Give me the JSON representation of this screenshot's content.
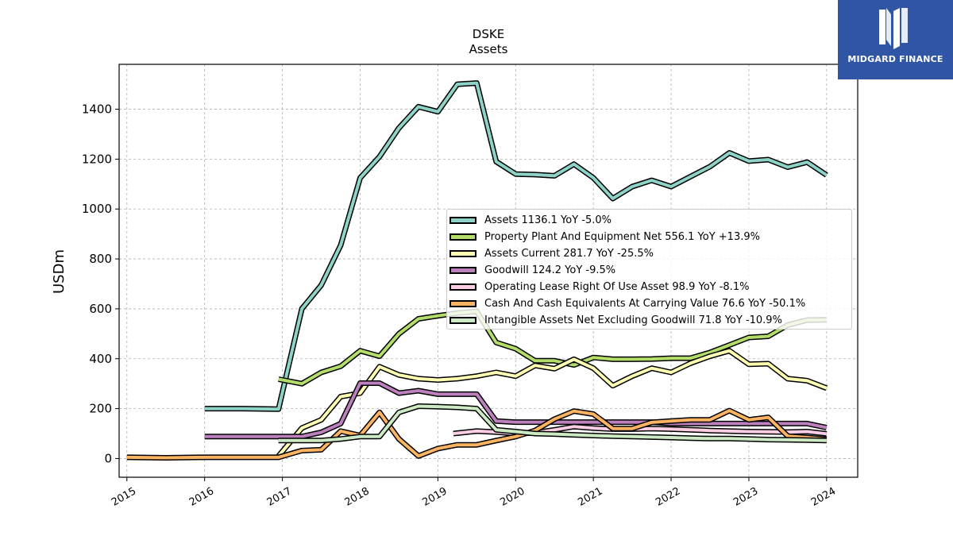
{
  "brand": {
    "name": "MIDGARD FINANCE",
    "color": "#2f55a4"
  },
  "chart_data": {
    "type": "line",
    "title": "DSKE",
    "subtitle": "Assets",
    "xlabel": "",
    "ylabel": "USDm",
    "xlim": [
      2014.9,
      2024.4
    ],
    "ylim": [
      -75,
      1580
    ],
    "xticks": [
      "2015",
      "2016",
      "2017",
      "2018",
      "2019",
      "2020",
      "2021",
      "2022",
      "2023",
      "2024"
    ],
    "yticks": [
      0,
      200,
      400,
      600,
      800,
      1000,
      1200,
      1400
    ],
    "grid": true,
    "legend_position": "center-right",
    "series": [
      {
        "name": "Assets",
        "legend": "Assets  1136.1 YoY -5.0%",
        "color": "#8dd3c7",
        "points": [
          [
            2016.0,
            200
          ],
          [
            2016.5,
            200
          ],
          [
            2016.95,
            198
          ],
          [
            2017.25,
            600
          ],
          [
            2017.5,
            695
          ],
          [
            2017.75,
            855
          ],
          [
            2018.0,
            1125
          ],
          [
            2018.25,
            1210
          ],
          [
            2018.5,
            1325
          ],
          [
            2018.75,
            1410
          ],
          [
            2019.0,
            1390
          ],
          [
            2019.25,
            1500
          ],
          [
            2019.5,
            1505
          ],
          [
            2019.75,
            1190
          ],
          [
            2020.0,
            1140
          ],
          [
            2020.25,
            1138
          ],
          [
            2020.5,
            1133
          ],
          [
            2020.75,
            1180
          ],
          [
            2021.0,
            1125
          ],
          [
            2021.25,
            1042
          ],
          [
            2021.5,
            1090
          ],
          [
            2021.75,
            1115
          ],
          [
            2022.0,
            1090
          ],
          [
            2022.25,
            1130
          ],
          [
            2022.5,
            1170
          ],
          [
            2022.75,
            1225
          ],
          [
            2023.0,
            1192
          ],
          [
            2023.25,
            1198
          ],
          [
            2023.5,
            1168
          ],
          [
            2023.75,
            1188
          ],
          [
            2024.0,
            1136
          ]
        ]
      },
      {
        "name": "Property Plant And Equipment Net",
        "legend": "Property Plant And Equipment Net  556.1 YoY +13.9%",
        "color": "#b3de69",
        "points": [
          [
            2016.95,
            318
          ],
          [
            2017.25,
            300
          ],
          [
            2017.5,
            345
          ],
          [
            2017.75,
            370
          ],
          [
            2018.0,
            432
          ],
          [
            2018.25,
            410
          ],
          [
            2018.5,
            500
          ],
          [
            2018.75,
            560
          ],
          [
            2019.0,
            572
          ],
          [
            2019.25,
            583
          ],
          [
            2019.5,
            590
          ],
          [
            2019.75,
            465
          ],
          [
            2020.0,
            440
          ],
          [
            2020.25,
            392
          ],
          [
            2020.5,
            392
          ],
          [
            2020.75,
            375
          ],
          [
            2021.0,
            405
          ],
          [
            2021.25,
            398
          ],
          [
            2021.5,
            398
          ],
          [
            2021.75,
            399
          ],
          [
            2022.0,
            402
          ],
          [
            2022.25,
            402
          ],
          [
            2022.5,
            425
          ],
          [
            2022.75,
            455
          ],
          [
            2023.0,
            485
          ],
          [
            2023.25,
            490
          ],
          [
            2023.5,
            535
          ],
          [
            2023.75,
            555
          ],
          [
            2024.0,
            556
          ]
        ]
      },
      {
        "name": "Assets Current",
        "legend": "Assets Current  281.7 YoY -25.5%",
        "color": "#ffffb3",
        "points": [
          [
            2016.95,
            10
          ],
          [
            2017.25,
            122
          ],
          [
            2017.5,
            155
          ],
          [
            2017.75,
            248
          ],
          [
            2018.0,
            262
          ],
          [
            2018.25,
            368
          ],
          [
            2018.5,
            335
          ],
          [
            2018.75,
            320
          ],
          [
            2019.0,
            315
          ],
          [
            2019.25,
            320
          ],
          [
            2019.5,
            330
          ],
          [
            2019.75,
            345
          ],
          [
            2020.0,
            330
          ],
          [
            2020.25,
            373
          ],
          [
            2020.5,
            360
          ],
          [
            2020.75,
            398
          ],
          [
            2021.0,
            362
          ],
          [
            2021.25,
            292
          ],
          [
            2021.5,
            330
          ],
          [
            2021.75,
            362
          ],
          [
            2022.0,
            345
          ],
          [
            2022.25,
            382
          ],
          [
            2022.5,
            410
          ],
          [
            2022.75,
            432
          ],
          [
            2023.0,
            378
          ],
          [
            2023.25,
            380
          ],
          [
            2023.5,
            320
          ],
          [
            2023.75,
            312
          ],
          [
            2024.0,
            282
          ]
        ]
      },
      {
        "name": "Goodwill",
        "legend": "Goodwill  124.2 YoY -9.5%",
        "color": "#bc80bd",
        "points": [
          [
            2016.0,
            88
          ],
          [
            2016.5,
            88
          ],
          [
            2016.95,
            88
          ],
          [
            2017.25,
            88
          ],
          [
            2017.5,
            105
          ],
          [
            2017.75,
            140
          ],
          [
            2018.0,
            302
          ],
          [
            2018.25,
            302
          ],
          [
            2018.5,
            262
          ],
          [
            2018.75,
            272
          ],
          [
            2019.0,
            258
          ],
          [
            2019.25,
            258
          ],
          [
            2019.5,
            258
          ],
          [
            2019.75,
            150
          ],
          [
            2020.0,
            146
          ],
          [
            2020.25,
            146
          ],
          [
            2020.5,
            146
          ],
          [
            2020.75,
            146
          ],
          [
            2021.0,
            146
          ],
          [
            2021.25,
            146
          ],
          [
            2021.5,
            146
          ],
          [
            2021.75,
            146
          ],
          [
            2022.0,
            140
          ],
          [
            2022.25,
            140
          ],
          [
            2022.5,
            140
          ],
          [
            2022.75,
            140
          ],
          [
            2023.0,
            140
          ],
          [
            2023.25,
            140
          ],
          [
            2023.5,
            140
          ],
          [
            2023.75,
            140
          ],
          [
            2024.0,
            124
          ]
        ]
      },
      {
        "name": "Operating Lease Right Of Use Asset",
        "legend": "Operating Lease Right Of Use Asset  98.9 YoY -8.1%",
        "color": "#fccde5",
        "points": [
          [
            2019.2,
            100
          ],
          [
            2019.5,
            110
          ],
          [
            2019.75,
            106
          ],
          [
            2020.0,
            100
          ],
          [
            2020.25,
            103
          ],
          [
            2020.5,
            115
          ],
          [
            2020.75,
            128
          ],
          [
            2021.0,
            122
          ],
          [
            2021.25,
            118
          ],
          [
            2021.5,
            118
          ],
          [
            2021.75,
            120
          ],
          [
            2022.0,
            118
          ],
          [
            2022.25,
            115
          ],
          [
            2022.5,
            112
          ],
          [
            2022.75,
            110
          ],
          [
            2023.0,
            108
          ],
          [
            2023.25,
            107
          ],
          [
            2023.5,
            106
          ],
          [
            2023.75,
            108
          ],
          [
            2024.0,
            99
          ]
        ]
      },
      {
        "name": "Cash And Cash Equivalents At Carrying Value",
        "legend": "Cash And Cash Equivalents At Carrying Value  76.6 YoY -50.1%",
        "color": "#fdb462",
        "points": [
          [
            2015.0,
            5
          ],
          [
            2015.5,
            3
          ],
          [
            2016.0,
            5
          ],
          [
            2016.5,
            5
          ],
          [
            2016.95,
            5
          ],
          [
            2017.25,
            32
          ],
          [
            2017.5,
            35
          ],
          [
            2017.75,
            110
          ],
          [
            2018.0,
            92
          ],
          [
            2018.25,
            185
          ],
          [
            2018.5,
            78
          ],
          [
            2018.75,
            10
          ],
          [
            2019.0,
            40
          ],
          [
            2019.25,
            55
          ],
          [
            2019.5,
            55
          ],
          [
            2019.75,
            72
          ],
          [
            2020.0,
            88
          ],
          [
            2020.25,
            112
          ],
          [
            2020.5,
            158
          ],
          [
            2020.75,
            190
          ],
          [
            2021.0,
            178
          ],
          [
            2021.25,
            120
          ],
          [
            2021.5,
            120
          ],
          [
            2021.75,
            145
          ],
          [
            2022.0,
            150
          ],
          [
            2022.25,
            155
          ],
          [
            2022.5,
            155
          ],
          [
            2022.75,
            192
          ],
          [
            2023.0,
            155
          ],
          [
            2023.25,
            165
          ],
          [
            2023.5,
            90
          ],
          [
            2023.75,
            84
          ],
          [
            2024.0,
            77
          ]
        ]
      },
      {
        "name": "Intangible Assets Net Excluding Goodwill",
        "legend": "Intangible Assets Net Excluding Goodwill  71.8 YoY -10.9%",
        "color": "#ccebc5",
        "points": [
          [
            2016.95,
            72
          ],
          [
            2017.25,
            72
          ],
          [
            2017.5,
            72
          ],
          [
            2017.75,
            78
          ],
          [
            2018.0,
            88
          ],
          [
            2018.25,
            88
          ],
          [
            2018.5,
            185
          ],
          [
            2018.75,
            210
          ],
          [
            2019.0,
            208
          ],
          [
            2019.25,
            205
          ],
          [
            2019.5,
            200
          ],
          [
            2019.75,
            115
          ],
          [
            2020.0,
            108
          ],
          [
            2020.25,
            100
          ],
          [
            2020.5,
            98
          ],
          [
            2020.75,
            95
          ],
          [
            2021.0,
            92
          ],
          [
            2021.25,
            90
          ],
          [
            2021.5,
            88
          ],
          [
            2021.75,
            86
          ],
          [
            2022.0,
            84
          ],
          [
            2022.25,
            82
          ],
          [
            2022.5,
            80
          ],
          [
            2022.75,
            80
          ],
          [
            2023.0,
            78
          ],
          [
            2023.25,
            76
          ],
          [
            2023.5,
            75
          ],
          [
            2023.75,
            74
          ],
          [
            2024.0,
            72
          ]
        ]
      }
    ]
  }
}
